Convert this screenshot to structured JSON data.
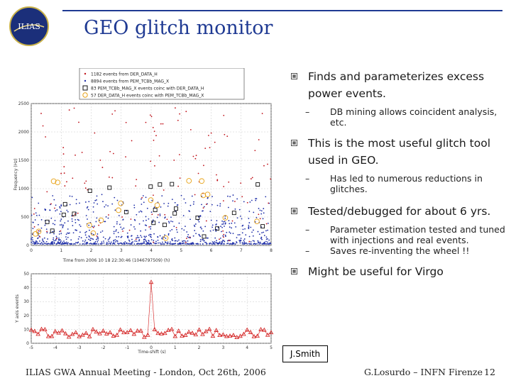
{
  "header": {
    "logo_text": "ILIAS",
    "title": "GEO glitch monitor"
  },
  "top_plot": {
    "legend": [
      "1182 events from DER_DATA_H",
      "8894 events from PEM_TCBb_MAG_X",
      "83 PEM_TCBb_MAG_X events coinc with DER_DATA_H",
      "57 DER_DATA_H events coinc with PEM_TCBb_MAG_X"
    ],
    "ylabel": "Frequency (Hz)",
    "xlabel": "Time from 2006 10 18 22:30:46 (1046797509) (h)",
    "y_ticks": [
      "0",
      "500",
      "1000",
      "1500",
      "2000",
      "2500"
    ],
    "x_ticks": [
      "0",
      "1",
      "2",
      "3",
      "4",
      "5",
      "6",
      "7",
      "8"
    ],
    "colors": {
      "der": "#c0121a",
      "pem": "#1e2ea8",
      "coinc_pem": "#111111",
      "coinc_der": "#e8a318"
    }
  },
  "bottom_plot": {
    "ylabel": "Y axis events",
    "xlabel": "Time-shift (s)",
    "y_ticks": [
      "0",
      "10",
      "20",
      "30",
      "40",
      "50"
    ],
    "x_ticks": [
      "-5",
      "-4",
      "-3",
      "-2",
      "-1",
      "0",
      "1",
      "2",
      "3",
      "4",
      "5"
    ],
    "color": "#d21a1a"
  },
  "bullets": [
    {
      "text": "Finds and parameterizes excess power events.",
      "subs": [
        "DB mining allows coincident analysis, etc."
      ]
    },
    {
      "text": "This is the most useful glitch tool used in GEO.",
      "subs": [
        "Has led to numerous reductions in glitches."
      ]
    },
    {
      "text": "Tested/debugged for about 6 yrs.",
      "subs": [
        "Parameter estimation tested and tuned with injections and real events.",
        "Saves re-inventing the wheel !!"
      ]
    },
    {
      "text": "Might be useful for Virgo",
      "subs": []
    }
  ],
  "credit": "J.Smith",
  "footer": {
    "left": "ILIAS GWA Annual Meeting - London, Oct 26th, 2006",
    "right": "G.Losurdo – INFN Firenze",
    "page": "12"
  }
}
